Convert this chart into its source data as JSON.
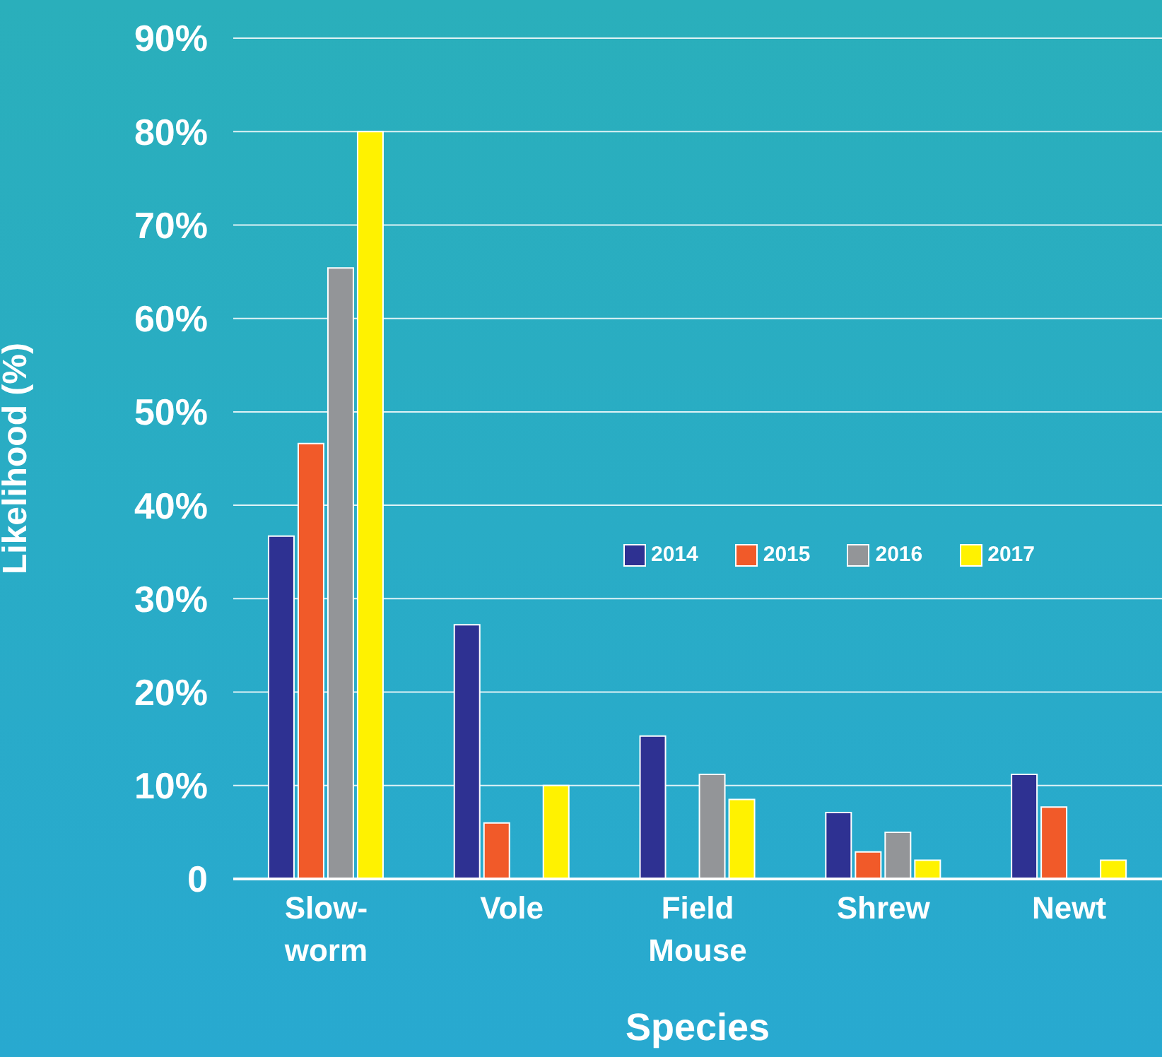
{
  "chart_data": {
    "type": "bar",
    "xlabel": "Species",
    "ylabel": "Likelihood (%)",
    "categories": [
      "Slow-worm",
      "Vole",
      "Field Mouse",
      "Shrew",
      "Newt"
    ],
    "series": [
      {
        "name": "2014",
        "color": "#2e3192",
        "values": [
          36.7,
          27.2,
          15.3,
          7.1,
          11.2
        ]
      },
      {
        "name": "2015",
        "color": "#f15a29",
        "values": [
          46.6,
          6,
          null,
          2.9,
          7.7
        ]
      },
      {
        "name": "2016",
        "color": "#939598",
        "values": [
          65.4,
          null,
          11.2,
          5,
          null
        ]
      },
      {
        "name": "2017",
        "color": "#fff200",
        "values": [
          80,
          10,
          8.5,
          2,
          2
        ]
      }
    ],
    "ylim": [
      0,
      90
    ],
    "yticks": [
      {
        "value": 0,
        "label": "0"
      },
      {
        "value": 10,
        "label": "10%"
      },
      {
        "value": 20,
        "label": "20%"
      },
      {
        "value": 30,
        "label": "30%"
      },
      {
        "value": 40,
        "label": "40%"
      },
      {
        "value": 50,
        "label": "50%"
      },
      {
        "value": 60,
        "label": "60%"
      },
      {
        "value": 70,
        "label": "70%"
      },
      {
        "value": 80,
        "label": "80%"
      },
      {
        "value": 90,
        "label": "90%"
      }
    ],
    "grid": "y",
    "legend": "right"
  }
}
